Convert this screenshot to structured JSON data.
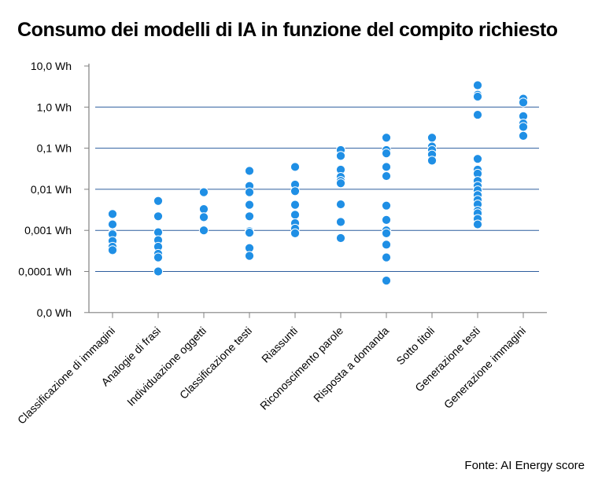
{
  "chart_data": {
    "type": "scatter",
    "title": "Consumo dei modelli di IA in funzione del compito richiesto",
    "source": "Fonte: AI Energy score",
    "xlabel": "",
    "ylabel": "",
    "y_scale": "log",
    "y_tick_labels": [
      "0,0 Wh",
      "0,0001 Wh",
      "0,001 Wh",
      "0,01 Wh",
      "0,1 Wh",
      "1,0 Wh",
      "10,0 Wh"
    ],
    "grid": "horizontal",
    "legend": "none",
    "point_color": "#1f8fe5",
    "gridline_color": "#2c5d9e",
    "categories": [
      "Classificazione di immagini",
      "Analogie di frasi",
      "Individuazione oggetti",
      "Classificazione testi",
      "Riassunti",
      "Riconoscimento parole",
      "Risposta a domanda",
      "Sotto titoli",
      "Generazione testi",
      "Generazione immagini"
    ],
    "series": [
      {
        "values": [
          [
            0.0025,
            0.0014,
            0.00085,
            0.0008,
            0.00055,
            0.0004,
            0.00033
          ],
          [
            0.0052,
            0.0022,
            0.0009,
            0.00058,
            0.0004,
            0.00027,
            0.00022,
            0.0001
          ],
          [
            0.0085,
            0.0033,
            0.0021,
            0.001
          ],
          [
            0.028,
            0.012,
            0.0085,
            0.0042,
            0.0022,
            0.00095,
            0.00088,
            0.00037,
            0.00024
          ],
          [
            0.035,
            0.013,
            0.009,
            0.0042,
            0.0024,
            0.0015,
            0.0011,
            0.00085
          ],
          [
            0.09,
            0.065,
            0.03,
            0.02,
            0.016,
            0.014,
            0.0043,
            0.0016,
            0.00065
          ],
          [
            0.18,
            0.09,
            0.075,
            0.035,
            0.021,
            0.004,
            0.0018,
            0.001,
            0.00085,
            0.00045,
            0.00022,
            6e-05
          ],
          [
            0.18,
            0.11,
            0.09,
            0.07,
            0.05
          ],
          [
            3.4,
            2.0,
            1.8,
            0.65,
            0.055,
            0.03,
            0.024,
            0.016,
            0.012,
            0.0095,
            0.0072,
            0.0055,
            0.0043,
            0.003,
            0.0026,
            0.0019,
            0.0014
          ],
          [
            1.6,
            1.3,
            0.6,
            0.4,
            0.33,
            0.2
          ]
        ]
      }
    ]
  }
}
